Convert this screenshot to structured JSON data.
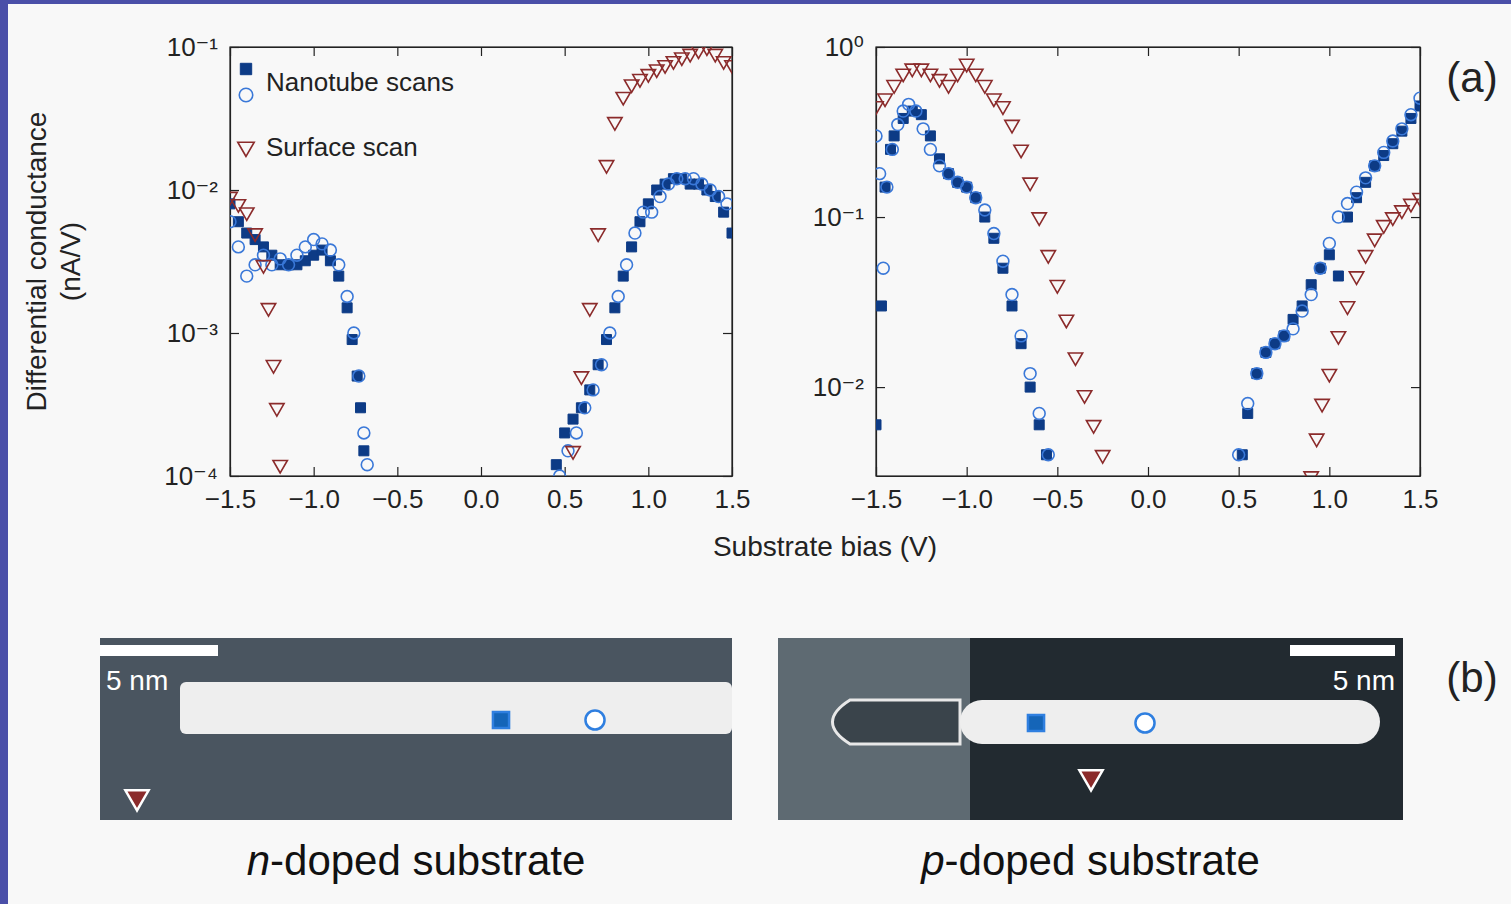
{
  "chart_data": [
    {
      "type": "scatter",
      "ylabel": "Differential conductance (nA/V)",
      "log": "y",
      "legend": "top-left",
      "xlim": [
        -1.5,
        1.5
      ],
      "xticks": [
        {
          "value": -1.5,
          "label": "−1.5"
        },
        {
          "value": -1.0,
          "label": "−1.0"
        },
        {
          "value": -0.5,
          "label": "−0.5"
        },
        {
          "value": 0.0,
          "label": "0.0"
        },
        {
          "value": 0.5,
          "label": "0.5"
        },
        {
          "value": 1.0,
          "label": "1.0"
        },
        {
          "value": 1.5,
          "label": "1.5"
        }
      ],
      "ylim": [
        0.0001,
        0.1
      ],
      "yticks": [
        {
          "value": 0.0001,
          "label": "10⁻⁴"
        },
        {
          "value": 0.001,
          "label": "10⁻³"
        },
        {
          "value": 0.01,
          "label": "10⁻²"
        },
        {
          "value": 0.1,
          "label": "10⁻¹"
        }
      ],
      "series": [
        {
          "name": "Nanotube scans",
          "color": "#0d3b86",
          "marker": "square-filled",
          "x": [
            -1.5,
            -1.45,
            -1.4,
            -1.35,
            -1.3,
            -1.25,
            -1.2,
            -1.15,
            -1.1,
            -1.05,
            -1.0,
            -0.95,
            -0.9,
            -0.85,
            -0.8,
            -0.77,
            -0.74,
            -0.72,
            -0.7,
            0.45,
            0.5,
            0.55,
            0.6,
            0.65,
            0.7,
            0.75,
            0.8,
            0.85,
            0.9,
            0.95,
            1.0,
            1.05,
            1.1,
            1.15,
            1.2,
            1.25,
            1.3,
            1.35,
            1.4,
            1.45,
            1.5
          ],
          "values": [
            0.008,
            0.006,
            0.005,
            0.0045,
            0.004,
            0.0035,
            0.003,
            0.003,
            0.003,
            0.0032,
            0.0035,
            0.0038,
            0.0032,
            0.0025,
            0.0015,
            0.0009,
            0.0005,
            0.0003,
            0.00015,
            0.00012,
            0.0002,
            0.00025,
            0.0003,
            0.0004,
            0.0006,
            0.0009,
            0.0015,
            0.0025,
            0.004,
            0.006,
            0.008,
            0.01,
            0.011,
            0.012,
            0.012,
            0.011,
            0.011,
            0.01,
            0.009,
            0.007,
            0.005
          ]
        },
        {
          "color": "#3a78d8",
          "marker": "circle-open",
          "x": [
            -1.5,
            -1.45,
            -1.4,
            -1.35,
            -1.3,
            -1.25,
            -1.2,
            -1.15,
            -1.1,
            -1.05,
            -1.0,
            -0.95,
            -0.9,
            -0.85,
            -0.8,
            -0.76,
            -0.73,
            -0.7,
            -0.68,
            0.47,
            0.52,
            0.57,
            0.62,
            0.67,
            0.72,
            0.77,
            0.82,
            0.87,
            0.92,
            0.97,
            1.02,
            1.07,
            1.12,
            1.17,
            1.22,
            1.27,
            1.32,
            1.37,
            1.42,
            1.47
          ],
          "values": [
            0.006,
            0.004,
            0.0025,
            0.003,
            0.0035,
            0.003,
            0.0033,
            0.003,
            0.0035,
            0.004,
            0.0045,
            0.0042,
            0.0038,
            0.003,
            0.0018,
            0.001,
            0.0005,
            0.0002,
            0.00012,
            0.0001,
            0.00015,
            0.0002,
            0.0003,
            0.0004,
            0.0006,
            0.001,
            0.0018,
            0.003,
            0.005,
            0.007,
            0.007,
            0.009,
            0.011,
            0.012,
            0.012,
            0.012,
            0.011,
            0.01,
            0.009,
            0.008
          ]
        },
        {
          "name": "Surface scan",
          "color": "#8b2b2b",
          "marker": "triangle-down-open",
          "x": [
            -1.5,
            -1.45,
            -1.4,
            -1.35,
            -1.3,
            -1.27,
            -1.24,
            -1.22,
            -1.2,
            0.55,
            0.6,
            0.65,
            0.7,
            0.75,
            0.8,
            0.85,
            0.9,
            0.95,
            1.0,
            1.05,
            1.1,
            1.15,
            1.2,
            1.25,
            1.3,
            1.35,
            1.4,
            1.45,
            1.5
          ],
          "values": [
            0.009,
            0.008,
            0.007,
            0.005,
            0.003,
            0.0015,
            0.0006,
            0.0003,
            0.00012,
            0.00015,
            0.0005,
            0.0015,
            0.005,
            0.015,
            0.03,
            0.045,
            0.055,
            0.06,
            0.065,
            0.07,
            0.075,
            0.08,
            0.085,
            0.09,
            0.095,
            0.1,
            0.09,
            0.08,
            0.075
          ]
        }
      ]
    },
    {
      "type": "scatter",
      "log": "y",
      "xlim": [
        -1.5,
        1.5
      ],
      "xticks": [
        {
          "value": -1.5,
          "label": "−1.5"
        },
        {
          "value": -1.0,
          "label": "−1.0"
        },
        {
          "value": -0.5,
          "label": "−0.5"
        },
        {
          "value": 0.0,
          "label": "0.0"
        },
        {
          "value": 0.5,
          "label": "0.5"
        },
        {
          "value": 1.0,
          "label": "1.0"
        },
        {
          "value": 1.5,
          "label": "1.5"
        }
      ],
      "ylim": [
        0.003,
        1
      ],
      "yticks": [
        {
          "value": 0.01,
          "label": "10⁻²"
        },
        {
          "value": 0.1,
          "label": "10⁻¹"
        },
        {
          "value": 1,
          "label": "10⁰"
        }
      ],
      "series": [
        {
          "color": "#0d3b86",
          "marker": "square-filled",
          "x": [
            -1.5,
            -1.47,
            -1.45,
            -1.42,
            -1.4,
            -1.35,
            -1.3,
            -1.25,
            -1.2,
            -1.15,
            -1.1,
            -1.05,
            -1.0,
            -0.95,
            -0.9,
            -0.85,
            -0.8,
            -0.75,
            -0.7,
            -0.65,
            -0.6,
            -0.56,
            0.52,
            0.55,
            0.6,
            0.65,
            0.7,
            0.75,
            0.8,
            0.85,
            0.9,
            0.95,
            1.0,
            1.05,
            1.1,
            1.15,
            1.2,
            1.25,
            1.3,
            1.35,
            1.4,
            1.45,
            1.5
          ],
          "values": [
            0.006,
            0.03,
            0.15,
            0.25,
            0.3,
            0.38,
            0.42,
            0.4,
            0.3,
            0.22,
            0.18,
            0.16,
            0.15,
            0.13,
            0.1,
            0.075,
            0.05,
            0.03,
            0.018,
            0.01,
            0.006,
            0.004,
            0.004,
            0.007,
            0.012,
            0.016,
            0.018,
            0.02,
            0.025,
            0.03,
            0.04,
            0.05,
            0.06,
            0.045,
            0.1,
            0.13,
            0.16,
            0.2,
            0.23,
            0.27,
            0.32,
            0.38,
            0.45
          ]
        },
        {
          "color": "#3a78d8",
          "marker": "circle-open",
          "x": [
            -1.5,
            -1.48,
            -1.46,
            -1.44,
            -1.41,
            -1.38,
            -1.35,
            -1.32,
            -1.28,
            -1.24,
            -1.2,
            -1.15,
            -1.1,
            -1.05,
            -1.0,
            -0.95,
            -0.9,
            -0.85,
            -0.8,
            -0.75,
            -0.7,
            -0.65,
            -0.6,
            -0.55,
            0.5,
            0.55,
            0.6,
            0.65,
            0.7,
            0.75,
            0.8,
            0.85,
            0.9,
            0.95,
            1.0,
            1.05,
            1.1,
            1.15,
            1.2,
            1.25,
            1.3,
            1.35,
            1.4,
            1.45,
            1.5
          ],
          "values": [
            0.3,
            0.18,
            0.05,
            0.15,
            0.25,
            0.35,
            0.42,
            0.46,
            0.42,
            0.33,
            0.25,
            0.2,
            0.18,
            0.16,
            0.15,
            0.13,
            0.11,
            0.08,
            0.055,
            0.035,
            0.02,
            0.012,
            0.007,
            0.004,
            0.004,
            0.008,
            0.012,
            0.016,
            0.018,
            0.02,
            0.022,
            0.028,
            0.035,
            0.05,
            0.07,
            0.1,
            0.12,
            0.14,
            0.17,
            0.2,
            0.24,
            0.28,
            0.33,
            0.4,
            0.5
          ]
        },
        {
          "color": "#8b2b2b",
          "marker": "triangle-down-open",
          "x": [
            -1.5,
            -1.45,
            -1.4,
            -1.35,
            -1.3,
            -1.25,
            -1.2,
            -1.15,
            -1.1,
            -1.05,
            -1.0,
            -0.95,
            -0.9,
            -0.85,
            -0.8,
            -0.75,
            -0.7,
            -0.65,
            -0.6,
            -0.55,
            -0.5,
            -0.45,
            -0.4,
            -0.35,
            -0.3,
            -0.25,
            0.9,
            0.93,
            0.96,
            1.0,
            1.05,
            1.1,
            1.15,
            1.2,
            1.25,
            1.3,
            1.35,
            1.4,
            1.45,
            1.5
          ],
          "values": [
            0.45,
            0.5,
            0.6,
            0.7,
            0.75,
            0.75,
            0.7,
            0.65,
            0.6,
            0.7,
            0.8,
            0.7,
            0.6,
            0.5,
            0.45,
            0.35,
            0.25,
            0.16,
            0.1,
            0.06,
            0.04,
            0.025,
            0.015,
            0.009,
            0.006,
            0.004,
            0.003,
            0.005,
            0.008,
            0.012,
            0.02,
            0.03,
            0.045,
            0.06,
            0.075,
            0.09,
            0.1,
            0.11,
            0.12,
            0.13
          ]
        }
      ]
    }
  ],
  "figure": {
    "xlabel": "Substrate bias (V)",
    "panel_labels": [
      "(a)",
      "(b)"
    ],
    "images": [
      {
        "scale_bar": "5 nm",
        "caption": "n-doped substrate"
      },
      {
        "scale_bar": "5 nm",
        "caption": "p-doped substrate"
      }
    ]
  }
}
